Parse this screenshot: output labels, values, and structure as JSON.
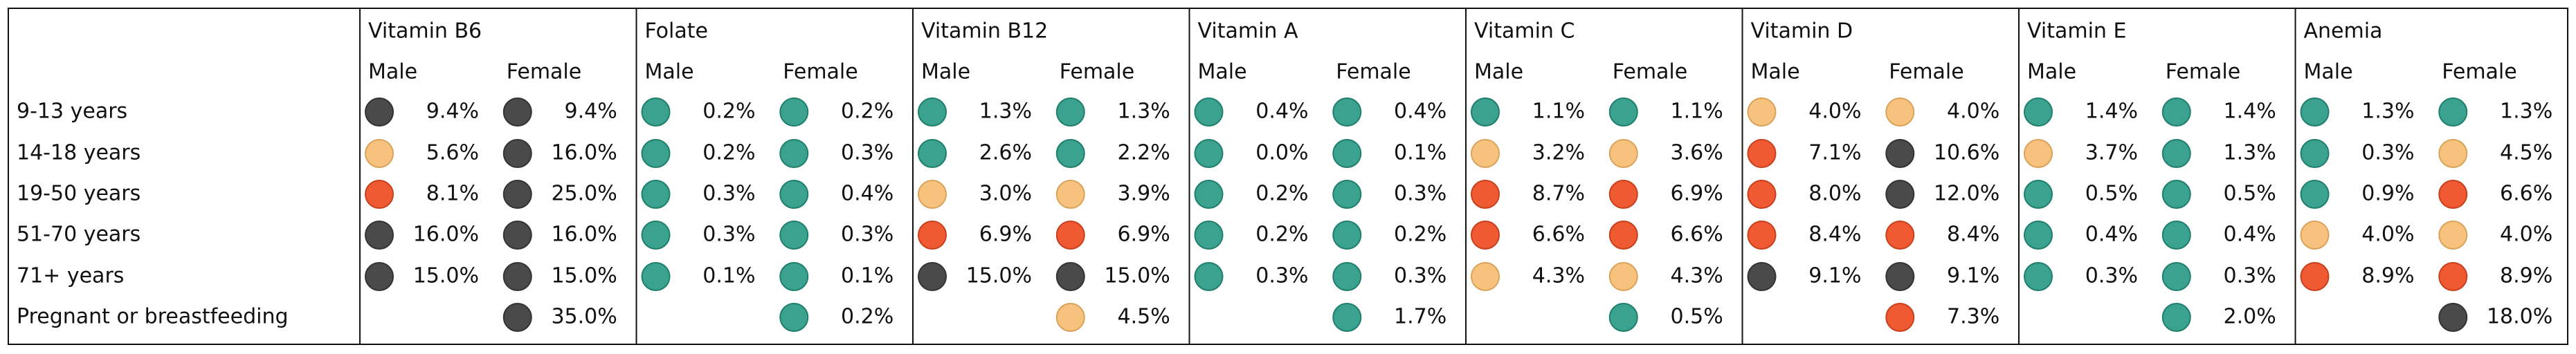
{
  "table": {
    "row_labels": [
      "9-13 years",
      "14-18 years",
      "19-50 years",
      "51-70 years",
      "71+ years",
      "Pregnant or breastfeeding"
    ],
    "sex_labels": [
      "Male",
      "Female"
    ],
    "colors": {
      "teal": "#3aa28f",
      "light_orange": "#f6c27e",
      "red_orange": "#f05a32",
      "dark_gray": "#4a4a4a",
      "grid": "#111111"
    },
    "nutrients": [
      {
        "name": "Vitamin B6",
        "male": [
          {
            "v": "9.4%",
            "c": "dark_gray"
          },
          {
            "v": "5.6%",
            "c": "light_orange"
          },
          {
            "v": "8.1%",
            "c": "red_orange"
          },
          {
            "v": "16.0%",
            "c": "dark_gray"
          },
          {
            "v": "15.0%",
            "c": "dark_gray"
          },
          null
        ],
        "female": [
          {
            "v": "9.4%",
            "c": "dark_gray"
          },
          {
            "v": "16.0%",
            "c": "dark_gray"
          },
          {
            "v": "25.0%",
            "c": "dark_gray"
          },
          {
            "v": "16.0%",
            "c": "dark_gray"
          },
          {
            "v": "15.0%",
            "c": "dark_gray"
          },
          {
            "v": "35.0%",
            "c": "dark_gray"
          }
        ]
      },
      {
        "name": "Folate",
        "male": [
          {
            "v": "0.2%",
            "c": "teal"
          },
          {
            "v": "0.2%",
            "c": "teal"
          },
          {
            "v": "0.3%",
            "c": "teal"
          },
          {
            "v": "0.3%",
            "c": "teal"
          },
          {
            "v": "0.1%",
            "c": "teal"
          },
          null
        ],
        "female": [
          {
            "v": "0.2%",
            "c": "teal"
          },
          {
            "v": "0.3%",
            "c": "teal"
          },
          {
            "v": "0.4%",
            "c": "teal"
          },
          {
            "v": "0.3%",
            "c": "teal"
          },
          {
            "v": "0.1%",
            "c": "teal"
          },
          {
            "v": "0.2%",
            "c": "teal"
          }
        ]
      },
      {
        "name": "Vitamin B12",
        "male": [
          {
            "v": "1.3%",
            "c": "teal"
          },
          {
            "v": "2.6%",
            "c": "teal"
          },
          {
            "v": "3.0%",
            "c": "light_orange"
          },
          {
            "v": "6.9%",
            "c": "red_orange"
          },
          {
            "v": "15.0%",
            "c": "dark_gray"
          },
          null
        ],
        "female": [
          {
            "v": "1.3%",
            "c": "teal"
          },
          {
            "v": "2.2%",
            "c": "teal"
          },
          {
            "v": "3.9%",
            "c": "light_orange"
          },
          {
            "v": "6.9%",
            "c": "red_orange"
          },
          {
            "v": "15.0%",
            "c": "dark_gray"
          },
          {
            "v": "4.5%",
            "c": "light_orange"
          }
        ]
      },
      {
        "name": "Vitamin A",
        "male": [
          {
            "v": "0.4%",
            "c": "teal"
          },
          {
            "v": "0.0%",
            "c": "teal"
          },
          {
            "v": "0.2%",
            "c": "teal"
          },
          {
            "v": "0.2%",
            "c": "teal"
          },
          {
            "v": "0.3%",
            "c": "teal"
          },
          null
        ],
        "female": [
          {
            "v": "0.4%",
            "c": "teal"
          },
          {
            "v": "0.1%",
            "c": "teal"
          },
          {
            "v": "0.3%",
            "c": "teal"
          },
          {
            "v": "0.2%",
            "c": "teal"
          },
          {
            "v": "0.3%",
            "c": "teal"
          },
          {
            "v": "1.7%",
            "c": "teal"
          }
        ]
      },
      {
        "name": "Vitamin C",
        "male": [
          {
            "v": "1.1%",
            "c": "teal"
          },
          {
            "v": "3.2%",
            "c": "light_orange"
          },
          {
            "v": "8.7%",
            "c": "red_orange"
          },
          {
            "v": "6.6%",
            "c": "red_orange"
          },
          {
            "v": "4.3%",
            "c": "light_orange"
          },
          null
        ],
        "female": [
          {
            "v": "1.1%",
            "c": "teal"
          },
          {
            "v": "3.6%",
            "c": "light_orange"
          },
          {
            "v": "6.9%",
            "c": "red_orange"
          },
          {
            "v": "6.6%",
            "c": "red_orange"
          },
          {
            "v": "4.3%",
            "c": "light_orange"
          },
          {
            "v": "0.5%",
            "c": "teal"
          }
        ]
      },
      {
        "name": "Vitamin D",
        "male": [
          {
            "v": "4.0%",
            "c": "light_orange"
          },
          {
            "v": "7.1%",
            "c": "red_orange"
          },
          {
            "v": "8.0%",
            "c": "red_orange"
          },
          {
            "v": "8.4%",
            "c": "red_orange"
          },
          {
            "v": "9.1%",
            "c": "dark_gray"
          },
          null
        ],
        "female": [
          {
            "v": "4.0%",
            "c": "light_orange"
          },
          {
            "v": "10.6%",
            "c": "dark_gray"
          },
          {
            "v": "12.0%",
            "c": "dark_gray"
          },
          {
            "v": "8.4%",
            "c": "red_orange"
          },
          {
            "v": "9.1%",
            "c": "dark_gray"
          },
          {
            "v": "7.3%",
            "c": "red_orange"
          }
        ]
      },
      {
        "name": "Vitamin E",
        "male": [
          {
            "v": "1.4%",
            "c": "teal"
          },
          {
            "v": "3.7%",
            "c": "light_orange"
          },
          {
            "v": "0.5%",
            "c": "teal"
          },
          {
            "v": "0.4%",
            "c": "teal"
          },
          {
            "v": "0.3%",
            "c": "teal"
          },
          null
        ],
        "female": [
          {
            "v": "1.4%",
            "c": "teal"
          },
          {
            "v": "1.3%",
            "c": "teal"
          },
          {
            "v": "0.5%",
            "c": "teal"
          },
          {
            "v": "0.4%",
            "c": "teal"
          },
          {
            "v": "0.3%",
            "c": "teal"
          },
          {
            "v": "2.0%",
            "c": "teal"
          }
        ]
      },
      {
        "name": "Anemia",
        "male": [
          {
            "v": "1.3%",
            "c": "teal"
          },
          {
            "v": "0.3%",
            "c": "teal"
          },
          {
            "v": "0.9%",
            "c": "teal"
          },
          {
            "v": "4.0%",
            "c": "light_orange"
          },
          {
            "v": "8.9%",
            "c": "red_orange"
          },
          null
        ],
        "female": [
          {
            "v": "1.3%",
            "c": "teal"
          },
          {
            "v": "4.5%",
            "c": "light_orange"
          },
          {
            "v": "6.6%",
            "c": "red_orange"
          },
          {
            "v": "4.0%",
            "c": "light_orange"
          },
          {
            "v": "8.9%",
            "c": "red_orange"
          },
          {
            "v": "18.0%",
            "c": "dark_gray"
          }
        ]
      }
    ]
  }
}
